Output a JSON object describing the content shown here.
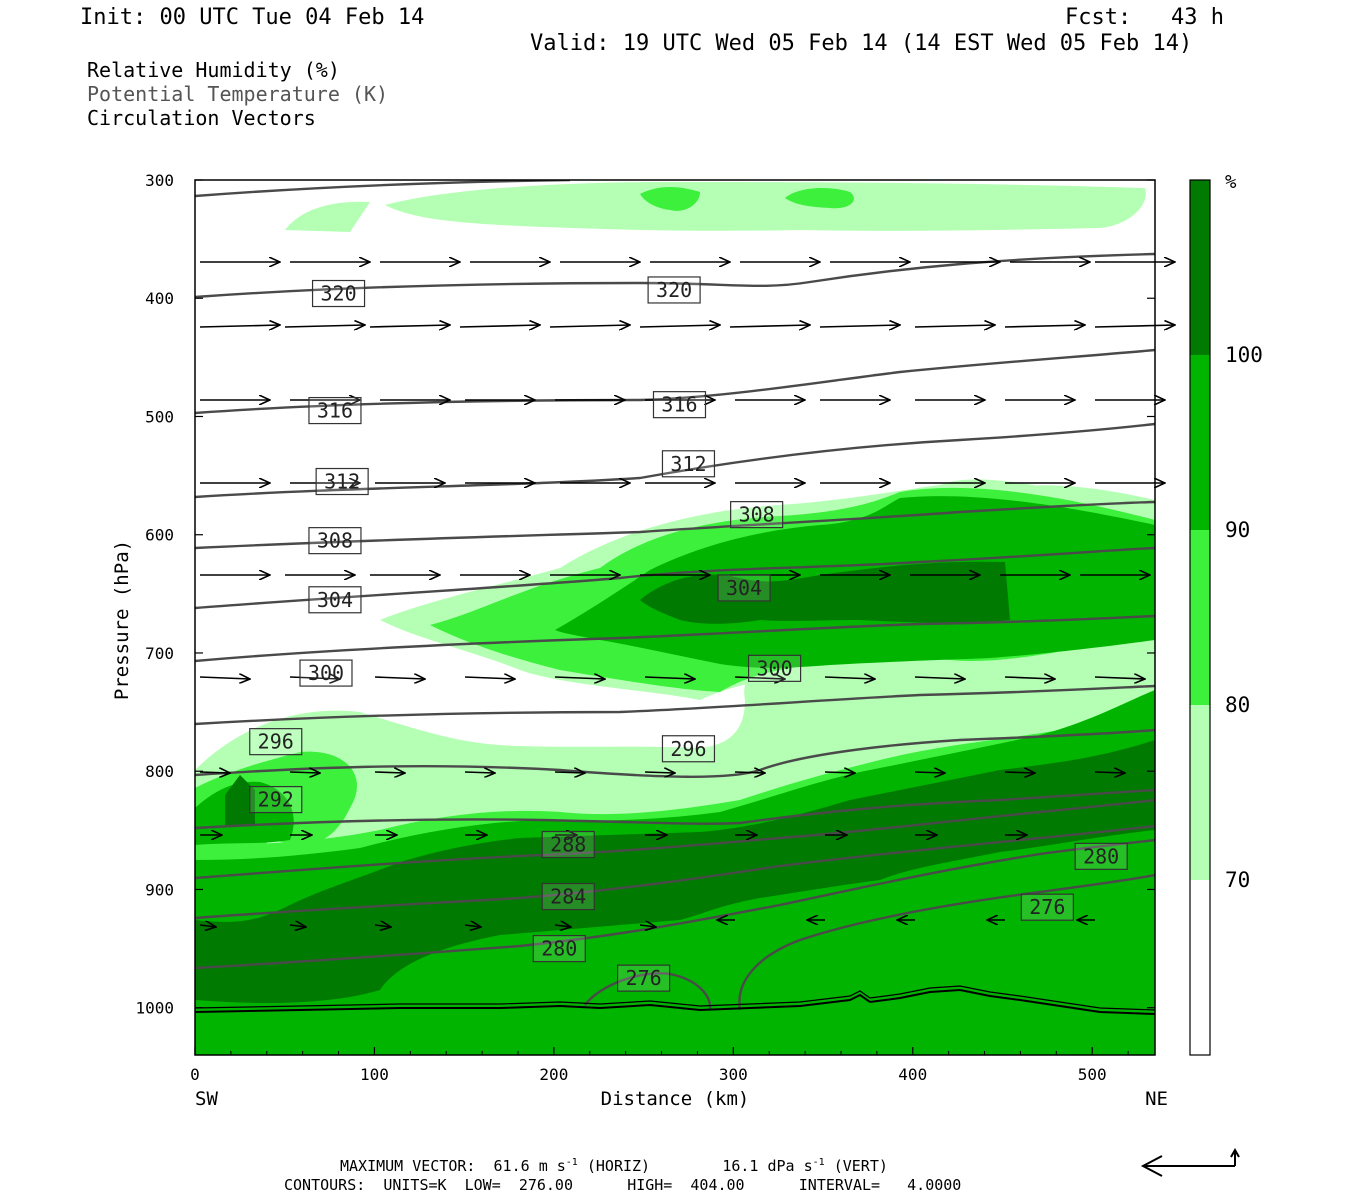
{
  "header": {
    "init": "Init: 00 UTC Tue 04 Feb 14",
    "fcst": "Fcst:   43 h",
    "valid": "Valid: 19 UTC Wed 05 Feb 14 (14 EST Wed 05 Feb 14)"
  },
  "fields": {
    "rh": "Relative Humidity (%)",
    "theta": "Potential Temperature (K)",
    "vectors": "Circulation Vectors"
  },
  "chart_data": {
    "type": "heatmap",
    "xlabel": "Distance (km)",
    "ylabel": "Pressure (hPa)",
    "x_ticks": [
      "0",
      "100",
      "200",
      "300",
      "400",
      "500"
    ],
    "y_ticks": [
      "300",
      "400",
      "500",
      "600",
      "700",
      "800",
      "900",
      "1000"
    ],
    "xlim": [
      0,
      535
    ],
    "ylim": [
      1040,
      300
    ],
    "y_scale": "linear (pressure increasing downward)",
    "left_end_label": "SW",
    "right_end_label": "NE",
    "colorbar": {
      "unit": "%",
      "levels": [
        "100",
        "90",
        "80",
        "70"
      ],
      "colors": [
        "#007a00",
        "#00b400",
        "#3cf03c",
        "#b4ffb4",
        "#ffffff"
      ]
    },
    "theta_contours_K": [
      {
        "label": "320",
        "x": 80,
        "p": 396
      },
      {
        "label": "320",
        "x": 267,
        "p": 393
      },
      {
        "label": "316",
        "x": 78,
        "p": 495
      },
      {
        "label": "316",
        "x": 270,
        "p": 490
      },
      {
        "label": "312",
        "x": 82,
        "p": 555
      },
      {
        "label": "312",
        "x": 275,
        "p": 540
      },
      {
        "label": "308",
        "x": 78,
        "p": 605
      },
      {
        "label": "308",
        "x": 313,
        "p": 583
      },
      {
        "label": "304",
        "x": 78,
        "p": 655
      },
      {
        "label": "304",
        "x": 306,
        "p": 645
      },
      {
        "label": "300",
        "x": 73,
        "p": 717
      },
      {
        "label": "300",
        "x": 323,
        "p": 713
      },
      {
        "label": "296",
        "x": 45,
        "p": 775
      },
      {
        "label": "296",
        "x": 275,
        "p": 781
      },
      {
        "label": "292",
        "x": 45,
        "p": 824
      },
      {
        "label": "288",
        "x": 208,
        "p": 862
      },
      {
        "label": "284",
        "x": 208,
        "p": 906
      },
      {
        "label": "280",
        "x": 203,
        "p": 950
      },
      {
        "label": "280",
        "x": 505,
        "p": 872
      },
      {
        "label": "276",
        "x": 250,
        "p": 975
      },
      {
        "label": "276",
        "x": 475,
        "p": 915
      }
    ],
    "contours_info": {
      "units": "K",
      "low": "276.00",
      "high": "404.00",
      "interval": "4.0000"
    },
    "max_vector": {
      "horiz": "61.6",
      "horiz_unit": "m s",
      "vert": "16.1",
      "vert_unit": "dPa s"
    }
  },
  "footer": {
    "max_vector_label": "MAXIMUM VECTOR:",
    "horiz_tag": "(HORIZ)",
    "vert_tag": "(VERT)",
    "exp": "-1",
    "contours_label": "CONTOURS:",
    "units_label": "UNITS=K",
    "low_label": "LOW=",
    "high_label": "HIGH=",
    "interval_label": "INTERVAL="
  }
}
